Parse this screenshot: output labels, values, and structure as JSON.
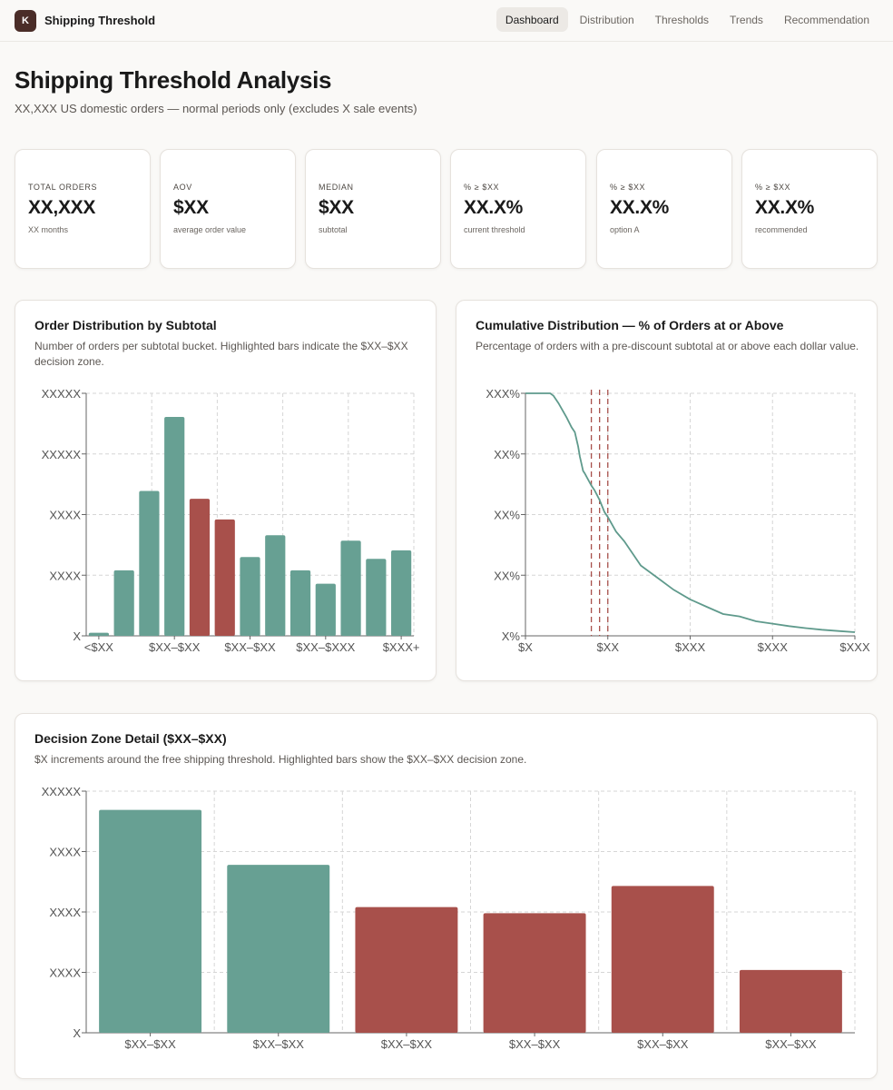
{
  "header": {
    "logo_letter": "K",
    "app_title": "Shipping Threshold",
    "tabs": [
      {
        "label": "Dashboard",
        "active": true
      },
      {
        "label": "Distribution",
        "active": false
      },
      {
        "label": "Thresholds",
        "active": false
      },
      {
        "label": "Trends",
        "active": false
      },
      {
        "label": "Recommendation",
        "active": false
      }
    ]
  },
  "page": {
    "title": "Shipping Threshold Analysis",
    "subtitle": "XX,XXX US domestic orders — normal periods only (excludes X sale events)"
  },
  "kpis": [
    {
      "label": "TOTAL ORDERS",
      "value": "XX,XXX",
      "sub": "XX months"
    },
    {
      "label": "AOV",
      "value": "$XX",
      "sub": "average order value"
    },
    {
      "label": "MEDIAN",
      "value": "$XX",
      "sub": "subtotal"
    },
    {
      "label": "% ≥ $XX",
      "value": "XX.X%",
      "sub": "current threshold"
    },
    {
      "label": "% ≥ $XX",
      "value": "XX.X%",
      "sub": "option A"
    },
    {
      "label": "% ≥ $XX",
      "value": "XX.X%",
      "sub": "recommended"
    }
  ],
  "colors": {
    "primary": "#67a093",
    "highlight": "#a8504b",
    "line": "#5f9a8c",
    "grid": "#d6d6d6",
    "axis": "#666666"
  },
  "chart_data": [
    {
      "type": "bar",
      "title": "Order Distribution by Subtotal",
      "description": "Number of orders per subtotal bucket. Highlighted bars indicate the $XX–$XX decision zone.",
      "y_tick_labels": [
        "X",
        "XXXX",
        "XXXX",
        "XXXXX",
        "XXXXX"
      ],
      "ylim": [
        0,
        4000
      ],
      "x_tick_labels": [
        "<$XX",
        "$XX–$XX",
        "$XX–$XX",
        "$XX–$XXX",
        "$XXX+"
      ],
      "values": [
        50,
        1080,
        2390,
        3610,
        2260,
        1920,
        1300,
        1660,
        1080,
        860,
        1570,
        1270,
        1410
      ],
      "highlight": [
        false,
        false,
        false,
        false,
        true,
        true,
        false,
        false,
        false,
        false,
        false,
        false,
        false
      ]
    },
    {
      "type": "line",
      "title": "Cumulative Distribution — % of Orders at or Above",
      "description": "Percentage of orders with a pre-discount subtotal at or above each dollar value.",
      "y_tick_labels": [
        "X%",
        "XX%",
        "XX%",
        "XX%",
        "XXX%"
      ],
      "ylim": [
        0,
        100
      ],
      "x_tick_labels": [
        "$X",
        "$XX",
        "$XXX",
        "$XXX",
        "$XXX"
      ],
      "xlim": [
        0,
        200
      ],
      "x": [
        0,
        15,
        17,
        20,
        25,
        28,
        30,
        32,
        33,
        35,
        36,
        40,
        42,
        45,
        48,
        50,
        55,
        60,
        65,
        70,
        80,
        90,
        100,
        110,
        120,
        130,
        140,
        150,
        160,
        170,
        180,
        190,
        200
      ],
      "y": [
        100,
        100,
        99,
        96,
        90,
        86,
        84,
        78,
        74,
        68,
        67,
        62,
        60,
        56,
        51,
        49,
        43,
        39,
        34,
        29,
        24,
        19,
        15,
        12,
        9,
        8,
        6,
        5,
        4,
        3.2,
        2.5,
        2.0,
        1.5
      ],
      "threshold_lines": [
        40,
        45,
        50
      ]
    },
    {
      "type": "bar",
      "title": "Decision Zone Detail ($XX–$XX)",
      "description": "$X increments around the free shipping threshold. Highlighted bars show the $XX–$XX decision zone.",
      "y_tick_labels": [
        "X",
        "XXXX",
        "XXXX",
        "XXXX",
        "XXXXX"
      ],
      "ylim": [
        0,
        4000
      ],
      "x_tick_labels": [
        "$XX–$XX",
        "$XX–$XX",
        "$XX–$XX",
        "$XX–$XX",
        "$XX–$XX",
        "$XX–$XX"
      ],
      "values": [
        3690,
        2780,
        2080,
        1980,
        2430,
        1040
      ],
      "highlight": [
        false,
        false,
        true,
        true,
        true,
        true
      ]
    }
  ]
}
